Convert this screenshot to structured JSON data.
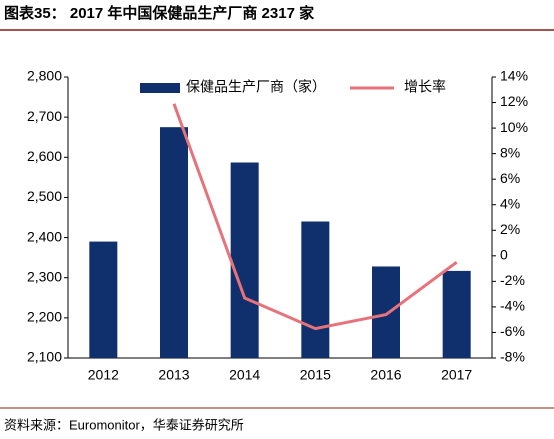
{
  "chart_data": {
    "type": "bar_line",
    "title": "图表35： 2017 年中国保健品生产厂商 2317 家",
    "source": "资料来源：Euromonitor，华泰证券研究所",
    "categories": [
      "2012",
      "2013",
      "2014",
      "2015",
      "2016",
      "2017"
    ],
    "series": [
      {
        "name": "保健品生产厂商（家）",
        "type": "bar",
        "color": "#0f2f6d",
        "values": [
          2390,
          2675,
          2587,
          2440,
          2328,
          2317
        ]
      },
      {
        "name": "增长率",
        "type": "line",
        "axis": "y2",
        "color": "#e8727a",
        "values": [
          null,
          11.9,
          -3.3,
          -5.7,
          -4.6,
          -0.5
        ]
      }
    ],
    "ylim": [
      2100,
      2800
    ],
    "yticks": [
      {
        "value": 2100,
        "label": "2,100"
      },
      {
        "value": 2200,
        "label": "2,200"
      },
      {
        "value": 2300,
        "label": "2,300"
      },
      {
        "value": 2400,
        "label": "2,400"
      },
      {
        "value": 2500,
        "label": "2,500"
      },
      {
        "value": 2600,
        "label": "2,600"
      },
      {
        "value": 2700,
        "label": "2,700"
      },
      {
        "value": 2800,
        "label": "2,800"
      }
    ],
    "y2lim": [
      -8,
      14
    ],
    "y2ticks": [
      {
        "value": -8,
        "label": "-8%"
      },
      {
        "value": -6,
        "label": "-6%"
      },
      {
        "value": -4,
        "label": "-4%"
      },
      {
        "value": -2,
        "label": "-2%"
      },
      0,
      {
        "value": 2,
        "label": "2%"
      },
      {
        "value": 4,
        "label": "4%"
      },
      {
        "value": 6,
        "label": "6%"
      },
      {
        "value": 8,
        "label": "8%"
      },
      {
        "value": 10,
        "label": "10%"
      },
      {
        "value": 12,
        "label": "12%"
      },
      {
        "value": 14,
        "label": "14%"
      }
    ],
    "legend": "top",
    "grid": false
  }
}
